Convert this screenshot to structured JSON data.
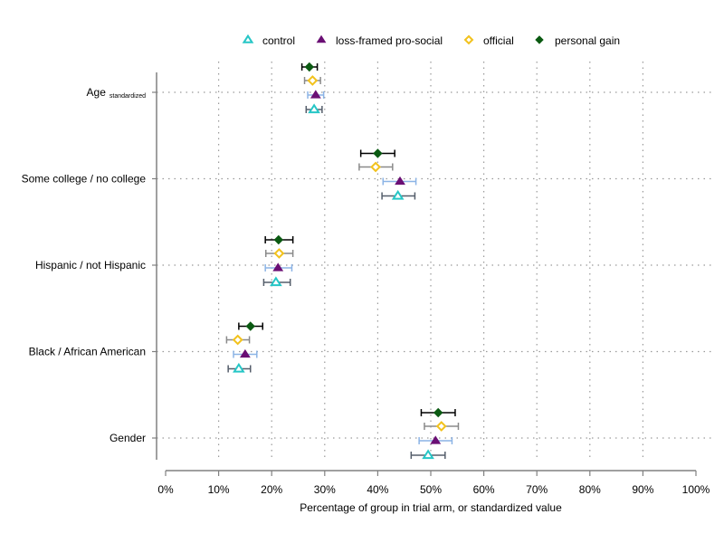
{
  "chart_data": {
    "type": "scatter",
    "title": "",
    "xlabel": "Percentage of group in trial arm, or standardized value",
    "ylabel": "",
    "xlim": [
      0,
      100
    ],
    "x_ticks": [
      "0%",
      "10%",
      "20%",
      "30%",
      "40%",
      "50%",
      "60%",
      "70%",
      "80%",
      "90%",
      "100%"
    ],
    "grid": true,
    "legend_position": "top",
    "categories": [
      {
        "label": "Age",
        "sub": "standardized"
      },
      {
        "label": "Some college / no college",
        "sub": ""
      },
      {
        "label": "Hispanic / not Hispanic",
        "sub": ""
      },
      {
        "label": "Black / African American",
        "sub": ""
      },
      {
        "label": "Gender",
        "sub": ""
      }
    ],
    "series": [
      {
        "name": "control",
        "marker": "triangle-open",
        "color": "#26c6c6",
        "ci_color": "#555e6b",
        "points": [
          {
            "category": "Age",
            "value": 28.0,
            "low": 26.5,
            "high": 29.5
          },
          {
            "category": "Some college / no college",
            "value": 43.8,
            "low": 40.8,
            "high": 47.0
          },
          {
            "category": "Hispanic / not Hispanic",
            "value": 20.8,
            "low": 18.5,
            "high": 23.5
          },
          {
            "category": "Black / African American",
            "value": 13.8,
            "low": 11.8,
            "high": 16.0
          },
          {
            "category": "Gender",
            "value": 49.5,
            "low": 46.3,
            "high": 52.7
          }
        ]
      },
      {
        "name": "loss-framed pro-social",
        "marker": "triangle",
        "color": "#6a0f74",
        "ci_color": "#8cb4e6",
        "points": [
          {
            "category": "Age",
            "value": 28.3,
            "low": 26.8,
            "high": 29.8
          },
          {
            "category": "Some college / no college",
            "value": 44.2,
            "low": 41.0,
            "high": 47.2
          },
          {
            "category": "Hispanic / not Hispanic",
            "value": 21.2,
            "low": 18.8,
            "high": 23.8
          },
          {
            "category": "Black / African American",
            "value": 15.0,
            "low": 12.8,
            "high": 17.2
          },
          {
            "category": "Gender",
            "value": 50.9,
            "low": 47.8,
            "high": 54.0
          }
        ]
      },
      {
        "name": "official",
        "marker": "diamond-open",
        "color": "#f2c21d",
        "ci_color": "#8a8a8a",
        "points": [
          {
            "category": "Age",
            "value": 27.7,
            "low": 26.2,
            "high": 29.2
          },
          {
            "category": "Some college / no college",
            "value": 39.6,
            "low": 36.5,
            "high": 42.8
          },
          {
            "category": "Hispanic / not Hispanic",
            "value": 21.4,
            "low": 18.9,
            "high": 24.0
          },
          {
            "category": "Black / African American",
            "value": 13.6,
            "low": 11.5,
            "high": 15.8
          },
          {
            "category": "Gender",
            "value": 52.0,
            "low": 48.8,
            "high": 55.2
          }
        ]
      },
      {
        "name": "personal gain",
        "marker": "diamond",
        "color": "#0b5a12",
        "ci_color": "#000000",
        "points": [
          {
            "category": "Age",
            "value": 27.1,
            "low": 25.7,
            "high": 28.6
          },
          {
            "category": "Some college / no college",
            "value": 40.0,
            "low": 36.8,
            "high": 43.2
          },
          {
            "category": "Hispanic / not Hispanic",
            "value": 21.3,
            "low": 18.8,
            "high": 24.0
          },
          {
            "category": "Black / African American",
            "value": 16.0,
            "low": 13.8,
            "high": 18.3
          },
          {
            "category": "Gender",
            "value": 51.4,
            "low": 48.2,
            "high": 54.6
          }
        ]
      }
    ]
  }
}
